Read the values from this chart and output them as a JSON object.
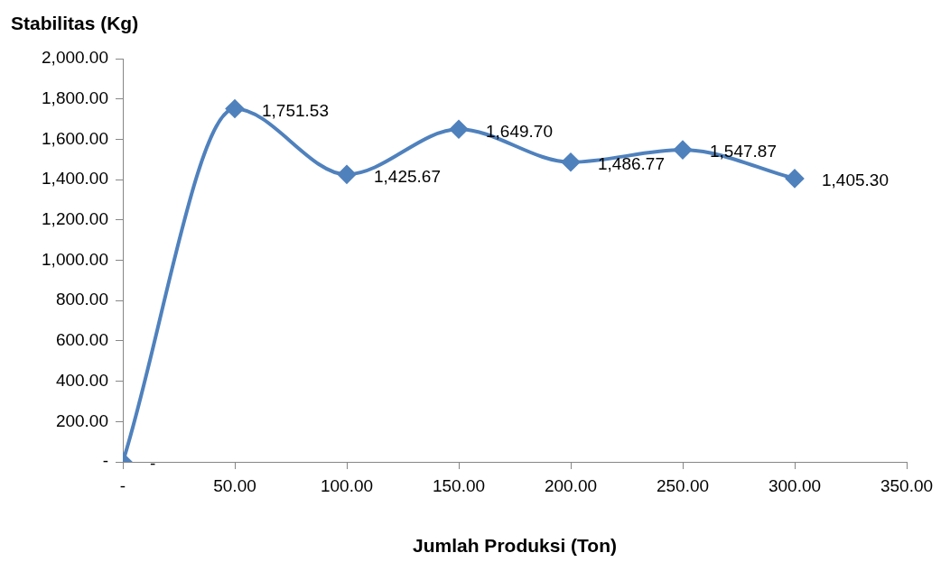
{
  "chart_data": {
    "type": "line",
    "ylabel": "Stabilitas (Kg)",
    "xlabel": "Jumlah Produksi (Ton)",
    "x": [
      0,
      50,
      100,
      150,
      200,
      250,
      300
    ],
    "series": [
      {
        "color": "#4f81bd",
        "values": [
          0,
          1751.53,
          1425.67,
          1649.7,
          1486.77,
          1547.87,
          1405.3
        ],
        "value_labels": [
          "-",
          "1,751.53",
          "1,425.67",
          "1,649.70",
          "1,486.77",
          "1,547.87",
          "1,405.30"
        ]
      }
    ],
    "xlim": [
      0,
      350
    ],
    "xticks": [
      {
        "value": 0,
        "label": "-"
      },
      {
        "value": 50,
        "label": "50.00"
      },
      {
        "value": 100,
        "label": "100.00"
      },
      {
        "value": 150,
        "label": "150.00"
      },
      {
        "value": 200,
        "label": "200.00"
      },
      {
        "value": 250,
        "label": "250.00"
      },
      {
        "value": 300,
        "label": "300.00"
      },
      {
        "value": 350,
        "label": "350.00"
      }
    ],
    "ylim": [
      0,
      2000
    ],
    "yticks": [
      {
        "value": 0,
        "label": "-"
      },
      {
        "value": 200,
        "label": "200.00"
      },
      {
        "value": 400,
        "label": "400.00"
      },
      {
        "value": 600,
        "label": "600.00"
      },
      {
        "value": 800,
        "label": "800.00"
      },
      {
        "value": 1000,
        "label": "1,000.00"
      },
      {
        "value": 1200,
        "label": "1,200.00"
      },
      {
        "value": 1400,
        "label": "1,400.00"
      },
      {
        "value": 1600,
        "label": "1,600.00"
      },
      {
        "value": 1800,
        "label": "1,800.00"
      },
      {
        "value": 2000,
        "label": "2,000.00"
      }
    ],
    "grid": false,
    "legend": false,
    "marker": "diamond",
    "line_style": "solid"
  }
}
